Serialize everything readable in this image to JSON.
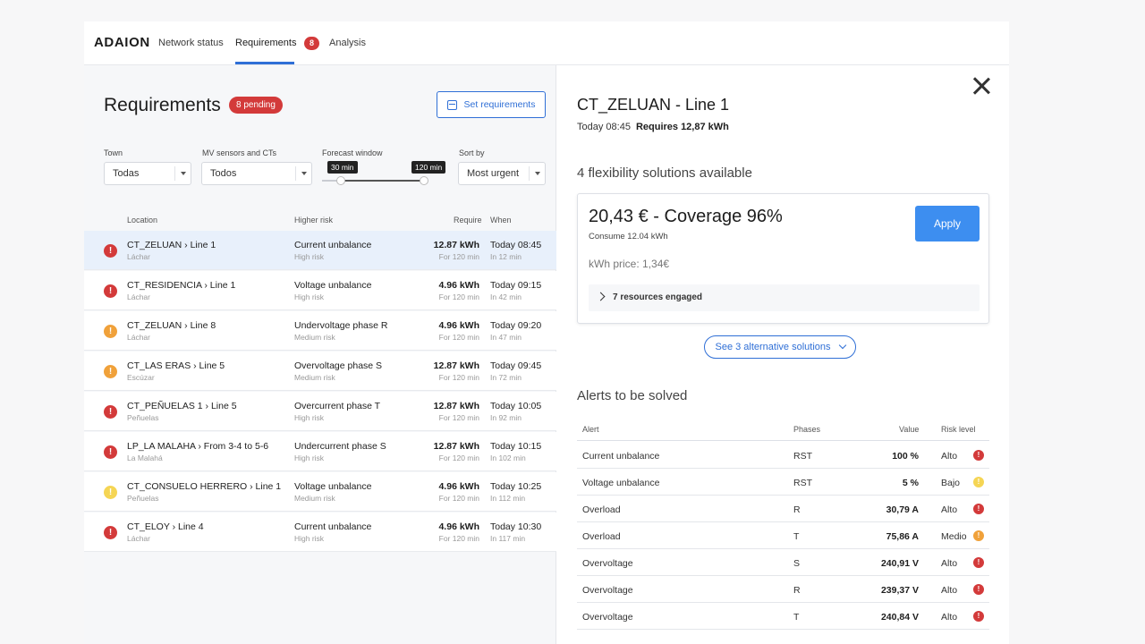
{
  "nav": {
    "brand": "ADAION",
    "tabs": [
      {
        "label": "Network status"
      },
      {
        "label": "Requirements"
      },
      {
        "label": "Analysis"
      }
    ],
    "badge": "8"
  },
  "left": {
    "title": "Requirements",
    "pending": "8 pending",
    "set_requirements": "Set requirements",
    "filters": {
      "town_label": "Town",
      "town_value": "Todas",
      "sensors_label": "MV sensors and CTs",
      "sensors_value": "Todos",
      "forecast_label": "Forecast window",
      "forecast_min": "30 min",
      "forecast_max": "120 min",
      "sort_label": "Sort by",
      "sort_value": "Most urgent"
    },
    "columns": {
      "location": "Location",
      "risk": "Higher risk",
      "require": "Require",
      "when": "When"
    },
    "rows": [
      {
        "loc": "CT_ZELUAN › Line 1",
        "sub": "Láchar",
        "risk": "Current unbalance",
        "risk_level": "High risk",
        "req": "12.87 kWh",
        "for": "For 120 min",
        "when": "Today 08:45",
        "in": "In 12 min",
        "color": "#d33a3a"
      },
      {
        "loc": "CT_RESIDENCIA › Line 1",
        "sub": "Láchar",
        "risk": "Voltage unbalance",
        "risk_level": "High risk",
        "req": "4.96 kWh",
        "for": "For 120 min",
        "when": "Today 09:15",
        "in": "In 42 min",
        "color": "#d33a3a"
      },
      {
        "loc": "CT_ZELUAN › Line 8",
        "sub": "Láchar",
        "risk": "Undervoltage phase R",
        "risk_level": "Medium risk",
        "req": "4.96 kWh",
        "for": "For 120 min",
        "when": "Today 09:20",
        "in": "In 47 min",
        "color": "#f0a13a"
      },
      {
        "loc": "CT_LAS ERAS › Line 5",
        "sub": "Escúzar",
        "risk": "Overvoltage phase S",
        "risk_level": "Medium risk",
        "req": "12.87 kWh",
        "for": "For 120 min",
        "when": "Today 09:45",
        "in": "In 72 min",
        "color": "#f0a13a"
      },
      {
        "loc": "CT_PEÑUELAS 1 › Line 5",
        "sub": "Peñuelas",
        "risk": "Overcurrent phase T",
        "risk_level": "High risk",
        "req": "12.87 kWh",
        "for": "For 120 min",
        "when": "Today 10:05",
        "in": "In 92 min",
        "color": "#d33a3a"
      },
      {
        "loc": "LP_LA MALAHA › From 3-4 to 5-6",
        "sub": "La Malahá",
        "risk": "Undercurrent phase S",
        "risk_level": "High risk",
        "req": "12.87 kWh",
        "for": "For 120 min",
        "when": "Today 10:15",
        "in": "In 102 min",
        "color": "#d33a3a"
      },
      {
        "loc": "CT_CONSUELO HERRERO › Line 1",
        "sub": "Peñuelas",
        "risk": "Voltage unbalance",
        "risk_level": "Medium risk",
        "req": "4.96 kWh",
        "for": "For 120 min",
        "when": "Today 10:25",
        "in": "In 112 min",
        "color": "#f5d554"
      },
      {
        "loc": "CT_ELOY › Line 4",
        "sub": "Láchar",
        "risk": "Current unbalance",
        "risk_level": "High risk",
        "req": "4.96 kWh",
        "for": "For 120 min",
        "when": "Today 10:30",
        "in": "In 117 min",
        "color": "#d33a3a"
      }
    ]
  },
  "right": {
    "title": "CT_ZELUAN - Line 1",
    "time": "Today 08:45",
    "requires": "Requires 12,87 kWh",
    "solutions_title": "4 flexibility solutions available",
    "solution": {
      "main": "20,43 € - Coverage 96%",
      "consume": "Consume 12.04 kWh",
      "price": "kWh price: 1,34€",
      "apply": "Apply",
      "resources": "7 resources engaged"
    },
    "alternatives": "See 3 alternative solutions",
    "alerts_title": "Alerts to be solved",
    "alerts_cols": {
      "alert": "Alert",
      "phases": "Phases",
      "value": "Value",
      "risk": "Risk level"
    },
    "alerts": [
      {
        "alert": "Current unbalance",
        "phases": "RST",
        "value": "100 %",
        "risk": "Alto",
        "color": "#d33a3a"
      },
      {
        "alert": "Voltage unbalance",
        "phases": "RST",
        "value": "5 %",
        "risk": "Bajo",
        "color": "#f5d554"
      },
      {
        "alert": "Overload",
        "phases": "R",
        "value": "30,79 A",
        "risk": "Alto",
        "color": "#d33a3a"
      },
      {
        "alert": "Overload",
        "phases": "T",
        "value": "75,86 A",
        "risk": "Medio",
        "color": "#f0a13a"
      },
      {
        "alert": "Overvoltage",
        "phases": "S",
        "value": "240,91 V",
        "risk": "Alto",
        "color": "#d33a3a"
      },
      {
        "alert": "Overvoltage",
        "phases": "R",
        "value": "239,37 V",
        "risk": "Alto",
        "color": "#d33a3a"
      },
      {
        "alert": "Overvoltage",
        "phases": "T",
        "value": "240,84 V",
        "risk": "Alto",
        "color": "#d33a3a"
      }
    ]
  }
}
